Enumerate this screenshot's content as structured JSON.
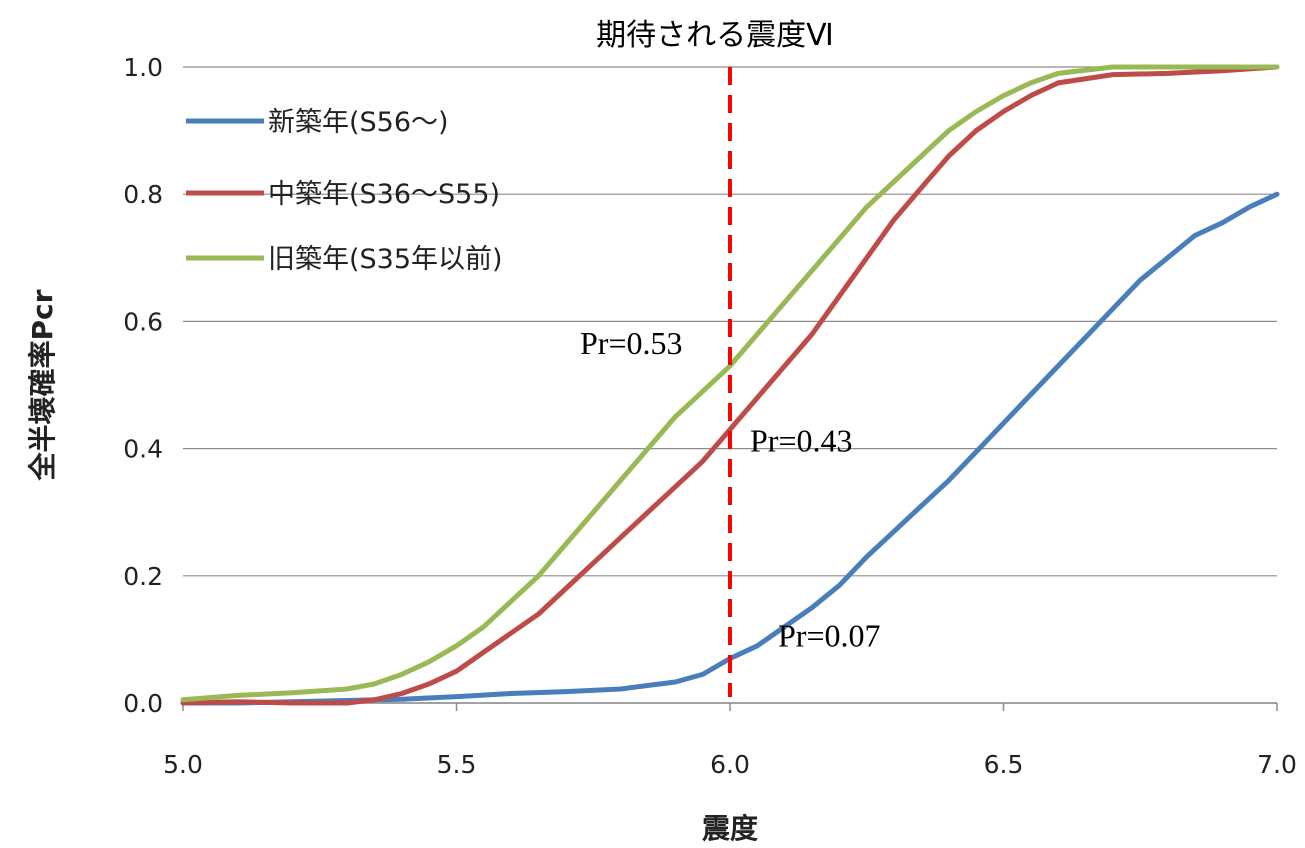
{
  "chart_data": {
    "type": "line",
    "title": "",
    "xlabel": "震度",
    "ylabel": "全半壊確率Pcr",
    "xlim": [
      5.0,
      7.0
    ],
    "ylim": [
      0.0,
      1.0
    ],
    "x_ticks": [
      "5.0",
      "5.5",
      "6.0",
      "6.5",
      "7.0"
    ],
    "y_ticks": [
      "0.0",
      "0.2",
      "0.4",
      "0.6",
      "0.8",
      "1.0"
    ],
    "grid": "horizontal",
    "legend_position": "top-left",
    "colors": {
      "blue": "#4a7ebb",
      "red": "#be4b48",
      "green": "#98b954",
      "marker": "#ff0000",
      "grid": "#8c8c8c"
    },
    "series": [
      {
        "name": "新築年(S56〜)",
        "color": "#4a7ebb",
        "points": [
          [
            5.0,
            0.0
          ],
          [
            5.1,
            0.0
          ],
          [
            5.2,
            0.002
          ],
          [
            5.3,
            0.004
          ],
          [
            5.4,
            0.006
          ],
          [
            5.5,
            0.01
          ],
          [
            5.6,
            0.015
          ],
          [
            5.7,
            0.018
          ],
          [
            5.8,
            0.022
          ],
          [
            5.9,
            0.033
          ],
          [
            5.95,
            0.045
          ],
          [
            6.0,
            0.07
          ],
          [
            6.05,
            0.09
          ],
          [
            6.1,
            0.12
          ],
          [
            6.15,
            0.15
          ],
          [
            6.2,
            0.185
          ],
          [
            6.25,
            0.23
          ],
          [
            6.3,
            0.27
          ],
          [
            6.35,
            0.31
          ],
          [
            6.4,
            0.35
          ],
          [
            6.45,
            0.395
          ],
          [
            6.5,
            0.44
          ],
          [
            6.55,
            0.485
          ],
          [
            6.6,
            0.53
          ],
          [
            6.65,
            0.575
          ],
          [
            6.7,
            0.62
          ],
          [
            6.75,
            0.665
          ],
          [
            6.8,
            0.7
          ],
          [
            6.85,
            0.735
          ],
          [
            6.9,
            0.755
          ],
          [
            6.95,
            0.78
          ],
          [
            7.0,
            0.8
          ]
        ]
      },
      {
        "name": "中築年(S36〜S55)",
        "color": "#be4b48",
        "points": [
          [
            5.0,
            0.0
          ],
          [
            5.1,
            0.002
          ],
          [
            5.2,
            0.0
          ],
          [
            5.3,
            0.0
          ],
          [
            5.35,
            0.005
          ],
          [
            5.4,
            0.015
          ],
          [
            5.45,
            0.03
          ],
          [
            5.5,
            0.05
          ],
          [
            5.55,
            0.08
          ],
          [
            5.6,
            0.11
          ],
          [
            5.65,
            0.14
          ],
          [
            5.7,
            0.18
          ],
          [
            5.75,
            0.22
          ],
          [
            5.8,
            0.26
          ],
          [
            5.85,
            0.3
          ],
          [
            5.9,
            0.34
          ],
          [
            5.95,
            0.38
          ],
          [
            6.0,
            0.43
          ],
          [
            6.05,
            0.48
          ],
          [
            6.1,
            0.53
          ],
          [
            6.15,
            0.58
          ],
          [
            6.2,
            0.64
          ],
          [
            6.25,
            0.7
          ],
          [
            6.3,
            0.76
          ],
          [
            6.35,
            0.81
          ],
          [
            6.4,
            0.86
          ],
          [
            6.45,
            0.9
          ],
          [
            6.5,
            0.93
          ],
          [
            6.55,
            0.955
          ],
          [
            6.6,
            0.975
          ],
          [
            6.7,
            0.988
          ],
          [
            6.8,
            0.99
          ],
          [
            6.9,
            0.994
          ],
          [
            7.0,
            1.0
          ]
        ]
      },
      {
        "name": "旧築年(S35年以前)",
        "color": "#98b954",
        "points": [
          [
            5.0,
            0.005
          ],
          [
            5.1,
            0.012
          ],
          [
            5.2,
            0.016
          ],
          [
            5.3,
            0.022
          ],
          [
            5.35,
            0.03
          ],
          [
            5.4,
            0.045
          ],
          [
            5.45,
            0.065
          ],
          [
            5.5,
            0.09
          ],
          [
            5.55,
            0.12
          ],
          [
            5.6,
            0.16
          ],
          [
            5.65,
            0.2
          ],
          [
            5.7,
            0.25
          ],
          [
            5.75,
            0.3
          ],
          [
            5.8,
            0.35
          ],
          [
            5.85,
            0.4
          ],
          [
            5.9,
            0.45
          ],
          [
            5.95,
            0.49
          ],
          [
            6.0,
            0.53
          ],
          [
            6.05,
            0.58
          ],
          [
            6.1,
            0.63
          ],
          [
            6.15,
            0.68
          ],
          [
            6.2,
            0.73
          ],
          [
            6.25,
            0.78
          ],
          [
            6.3,
            0.82
          ],
          [
            6.35,
            0.86
          ],
          [
            6.4,
            0.9
          ],
          [
            6.45,
            0.93
          ],
          [
            6.5,
            0.955
          ],
          [
            6.55,
            0.975
          ],
          [
            6.6,
            0.99
          ],
          [
            6.7,
            1.0
          ],
          [
            7.0,
            1.0
          ]
        ]
      }
    ],
    "vertical_line": {
      "x": 6.0,
      "label": "期待される震度Ⅵ",
      "color": "#ff0000",
      "style": "dashed"
    },
    "annotations": [
      {
        "text": "Pr=0.53",
        "x": 6.0,
        "y": 0.53,
        "anchor": "left-of-point"
      },
      {
        "text": "Pr=0.43",
        "x": 6.0,
        "y": 0.43,
        "anchor": "right-of-point"
      },
      {
        "text": "Pr=0.07",
        "x": 6.0,
        "y": 0.07,
        "anchor": "right-of-point"
      }
    ]
  }
}
